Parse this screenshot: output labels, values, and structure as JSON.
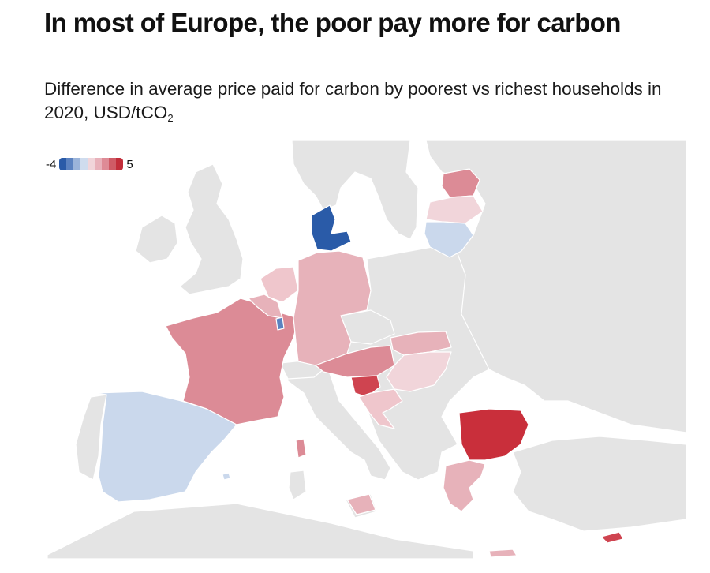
{
  "title": "In most of Europe, the poor pay more for carbon",
  "subtitle_main": "Difference in average price paid for carbon by poorest vs richest households in 2020, USD/tCO",
  "subtitle_sub": "2",
  "legend": {
    "min_label": "-4",
    "max_label": "5",
    "swatches": [
      "#2a5ba8",
      "#5b82c0",
      "#9bb4da",
      "#cfdcee",
      "#f1d5da",
      "#e8b1ba",
      "#de8b96",
      "#cf5b66",
      "#c22d3a"
    ]
  },
  "colors": {
    "background_land": "#e4e4e4",
    "border": "#ffffff",
    "water": "#ffffff"
  },
  "countries": [
    {
      "name": "Spain",
      "value": -1.0,
      "color": "#cad8ec"
    },
    {
      "name": "France",
      "value": 2.5,
      "color": "#dc8b96"
    },
    {
      "name": "Germany",
      "value": 1.5,
      "color": "#e7b2ba"
    },
    {
      "name": "Belgium",
      "value": 1.5,
      "color": "#e7b2ba"
    },
    {
      "name": "Netherlands",
      "value": 1.0,
      "color": "#efc6cc"
    },
    {
      "name": "Luxembourg",
      "value": -2.5,
      "color": "#5b82c0"
    },
    {
      "name": "Denmark",
      "value": -4.0,
      "color": "#2a5ba8"
    },
    {
      "name": "Austria",
      "value": 2.5,
      "color": "#dc8b96"
    },
    {
      "name": "Slovenia",
      "value": 4.0,
      "color": "#cf4450"
    },
    {
      "name": "Croatia",
      "value": 1.0,
      "color": "#efc6cc"
    },
    {
      "name": "Slovakia",
      "value": 1.5,
      "color": "#e7b2ba"
    },
    {
      "name": "Hungary",
      "value": 0.8,
      "color": "#f1d5da"
    },
    {
      "name": "Bulgaria",
      "value": 5.0,
      "color": "#c92f3b"
    },
    {
      "name": "Greece",
      "value": 1.5,
      "color": "#e7b2ba"
    },
    {
      "name": "Cyprus",
      "value": 4.0,
      "color": "#cf4450"
    },
    {
      "name": "Estonia",
      "value": 2.5,
      "color": "#dc8b96"
    },
    {
      "name": "Latvia",
      "value": 0.8,
      "color": "#f1d5da"
    },
    {
      "name": "Lithuania",
      "value": -1.0,
      "color": "#cad8ec"
    },
    {
      "name": "Italy (Sicily)",
      "value": 1.5,
      "color": "#e7b2ba"
    },
    {
      "name": "Malta",
      "value": -1.0,
      "color": "#cad8ec"
    },
    {
      "name": "Corsica",
      "value": 2.5,
      "color": "#dc8b96"
    }
  ]
}
